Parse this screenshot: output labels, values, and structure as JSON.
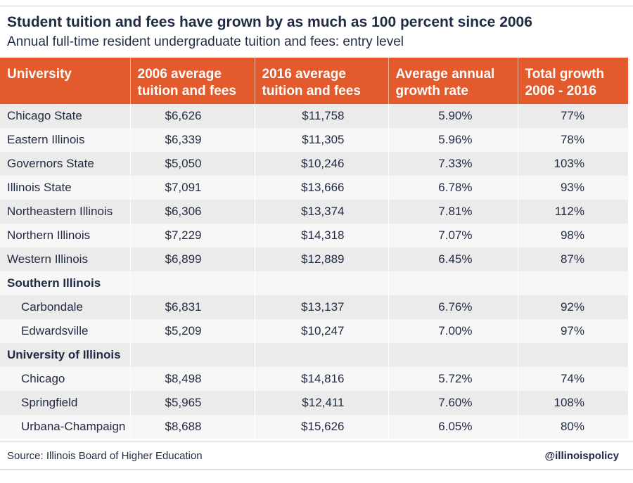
{
  "chart_data": {
    "type": "table",
    "title": "Student tuition and fees have grown by as much as 100 percent since 2006",
    "subtitle": "Annual full-time resident undergraduate tuition and fees: entry level",
    "columns": [
      "University",
      "2006 average tuition and fees",
      "2016 average tuition and fees",
      "Average annual growth rate",
      "Total growth 2006 - 2016"
    ],
    "rows": [
      {
        "university": "Chicago State",
        "t2006": "$6,626",
        "t2016": "$11,758",
        "annual": "5.90%",
        "total": "77%"
      },
      {
        "university": "Eastern Illinois",
        "t2006": "$6,339",
        "t2016": "$11,305",
        "annual": "5.96%",
        "total": "78%"
      },
      {
        "university": "Governors State",
        "t2006": "$5,050",
        "t2016": "$10,246",
        "annual": "7.33%",
        "total": "103%"
      },
      {
        "university": "Illinois State",
        "t2006": "$7,091",
        "t2016": "$13,666",
        "annual": "6.78%",
        "total": "93%"
      },
      {
        "university": "Northeastern Illinois",
        "t2006": "$6,306",
        "t2016": "$13,374",
        "annual": "7.81%",
        "total": "112%"
      },
      {
        "university": "Northern Illinois",
        "t2006": "$7,229",
        "t2016": "$14,318",
        "annual": "7.07%",
        "total": "98%"
      },
      {
        "university": "Western Illinois",
        "t2006": "$6,899",
        "t2016": "$12,889",
        "annual": "6.45%",
        "total": "87%"
      }
    ],
    "groups": [
      {
        "name": "Southern Illinois",
        "rows": [
          {
            "university": "Carbondale",
            "t2006": "$6,831",
            "t2016": "$13,137",
            "annual": "6.76%",
            "total": "92%"
          },
          {
            "university": "Edwardsville",
            "t2006": "$5,209",
            "t2016": "$10,247",
            "annual": "7.00%",
            "total": "97%"
          }
        ]
      },
      {
        "name": "University of Illinois",
        "rows": [
          {
            "university": "Chicago",
            "t2006": "$8,498",
            "t2016": "$14,816",
            "annual": "5.72%",
            "total": "74%"
          },
          {
            "university": "Springfield",
            "t2006": "$5,965",
            "t2016": "$12,411",
            "annual": "7.60%",
            "total": "108%"
          },
          {
            "university": "Urbana-Champaign",
            "t2006": "$8,688",
            "t2016": "$15,626",
            "annual": "6.05%",
            "total": "80%"
          }
        ]
      }
    ]
  },
  "header": {
    "col1": "University",
    "col2_line1": "2006 average",
    "col2_line2": "tuition and fees",
    "col3_line1": "2016 average",
    "col3_line2": "tuition and fees",
    "col4_line1": "Average annual",
    "col4_line2": "growth rate",
    "col5_line1": "Total growth",
    "col5_line2": "2006 - 2016"
  },
  "footer": {
    "source": "Source: Illinois Board of Higher Education",
    "handle": "@illinoispolicy"
  },
  "colors": {
    "header_bg": "#e35a2c",
    "text": "#1f2a44",
    "row_shade": "#ebebeb",
    "row_plain": "#f7f7f7"
  }
}
